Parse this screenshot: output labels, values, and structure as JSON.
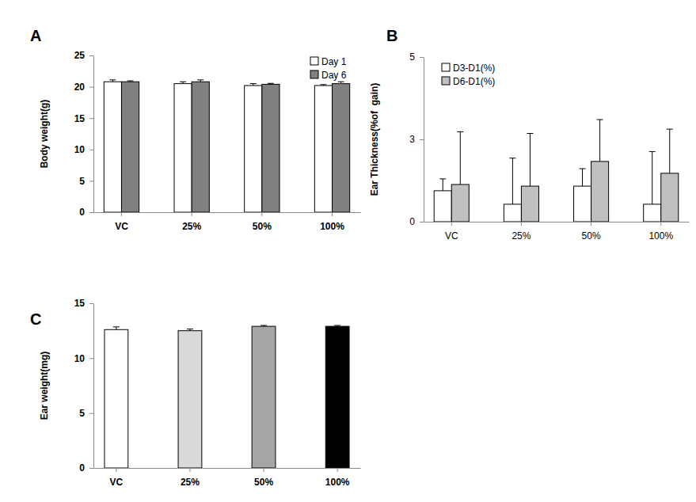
{
  "chart_data": [
    {
      "type": "bar",
      "title": "A",
      "y_label": "Body weight(g)",
      "categories": [
        "VC",
        "25%",
        "50%",
        "100%"
      ],
      "series": [
        {
          "name": "Day 1",
          "color": "#ffffff",
          "values": [
            20.8,
            20.5,
            20.2,
            20.2
          ],
          "errors": [
            0.3,
            0.3,
            0.3,
            0.15
          ]
        },
        {
          "name": "Day 6",
          "color": "#808080",
          "values": [
            20.8,
            20.8,
            20.4,
            20.5
          ],
          "errors": [
            0.15,
            0.3,
            0.15,
            0.3
          ]
        }
      ],
      "ylim": [
        0,
        25
      ],
      "yticks": [
        0,
        5,
        10,
        15,
        20,
        25
      ],
      "legend": "upper right"
    },
    {
      "type": "bar",
      "title": "B",
      "y_label": "Ear Thickness(%of  gain)",
      "categories": [
        "VC",
        "25%",
        "50%",
        "100%"
      ],
      "series": [
        {
          "name": "D3-D1(%)",
          "color": "#ffffff",
          "values": [
            0.94,
            0.53,
            1.08,
            0.53
          ],
          "errors": [
            0.36,
            1.4,
            0.53,
            1.6
          ]
        },
        {
          "name": "D6-D1(%)",
          "color": "#c0c0c0",
          "values": [
            1.13,
            1.08,
            1.83,
            1.47
          ],
          "errors": [
            1.6,
            1.6,
            1.27,
            1.34
          ]
        }
      ],
      "ylim": [
        0,
        5
      ],
      "yticks": [
        0,
        {
          "value": 2.5,
          "label": "3"
        },
        5
      ],
      "legend": "upper left"
    },
    {
      "type": "bar",
      "title": "C",
      "y_label": "Ear weight(mg)",
      "categories": [
        "VC",
        "25%",
        "50%",
        "100%"
      ],
      "values": [
        12.6,
        12.5,
        12.9,
        12.9
      ],
      "errors": [
        0.25,
        0.15,
        0.08,
        0.08
      ],
      "colors": [
        "#ffffff",
        "#d9d9d9",
        "#a6a6a6",
        "#000000"
      ],
      "ylim": [
        0,
        15
      ],
      "yticks": [
        0,
        5,
        10,
        15
      ]
    }
  ]
}
